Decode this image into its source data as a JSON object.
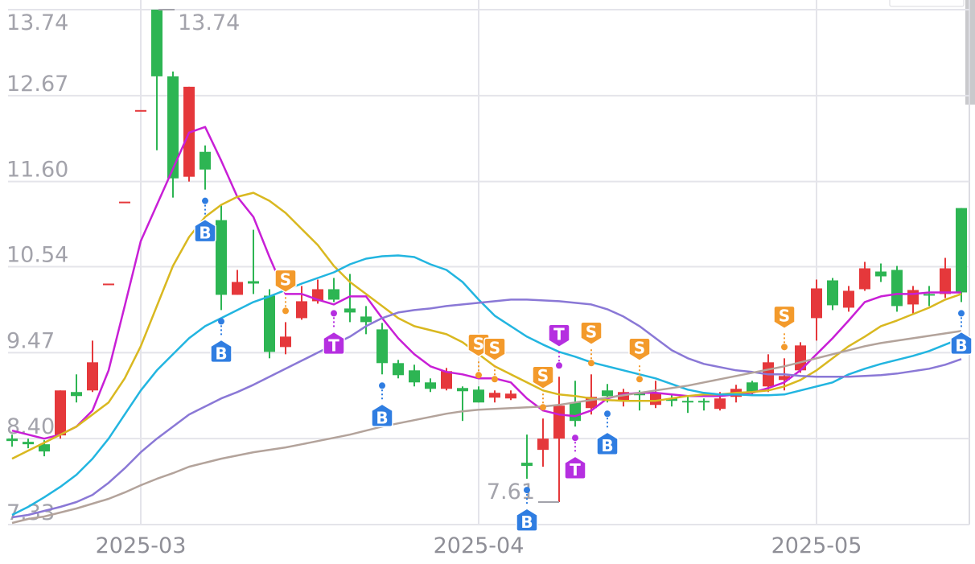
{
  "chart_data": {
    "type": "candlestick",
    "categories": [
      null,
      null,
      null,
      null,
      null,
      null,
      null,
      null,
      "2025-03",
      null,
      null,
      null,
      null,
      null,
      null,
      null,
      null,
      null,
      null,
      null,
      null,
      null,
      null,
      null,
      null,
      null,
      null,
      null,
      null,
      "2025-04",
      null,
      null,
      null,
      null,
      null,
      null,
      null,
      null,
      null,
      null,
      null,
      null,
      null,
      null,
      null,
      null,
      null,
      null,
      null,
      null,
      "2025-05",
      null,
      null,
      null,
      null,
      null,
      null,
      null,
      null,
      null
    ],
    "open": [
      8.4,
      8.36,
      8.33,
      8.44,
      8.98,
      9.0,
      10.32,
      11.34,
      12.48,
      13.74,
      12.91,
      11.66,
      11.97,
      11.12,
      10.19,
      10.36,
      10.18,
      9.54,
      9.9,
      10.11,
      10.26,
      10.02,
      9.92,
      9.76,
      9.34,
      9.25,
      9.1,
      9.02,
      9.03,
      9.01,
      8.91,
      8.9,
      8.1,
      8.26,
      8.4,
      8.85,
      8.78,
      9.0,
      8.88,
      8.95,
      8.82,
      8.9,
      8.86,
      8.86,
      8.77,
      8.92,
      9.1,
      9.05,
      9.13,
      9.25,
      9.9,
      10.37,
      10.03,
      10.26,
      10.48,
      10.5,
      10.07,
      10.19,
      10.2,
      11.27
    ],
    "high": [
      8.45,
      8.4,
      8.38,
      9.0,
      9.2,
      9.62,
      10.32,
      11.34,
      12.48,
      13.74,
      12.97,
      12.78,
      12.05,
      11.3,
      10.5,
      11.0,
      10.26,
      9.85,
      10.3,
      10.38,
      10.4,
      10.45,
      10.05,
      9.84,
      9.38,
      9.32,
      9.15,
      9.28,
      9.05,
      9.05,
      9.0,
      9.0,
      8.45,
      8.65,
      9.17,
      9.12,
      9.2,
      9.08,
      9.02,
      9.0,
      9.12,
      8.95,
      8.92,
      8.9,
      8.98,
      9.07,
      9.12,
      9.45,
      9.4,
      9.6,
      10.38,
      10.4,
      10.3,
      10.6,
      10.58,
      10.55,
      10.3,
      10.3,
      10.65,
      11.27
    ],
    "low": [
      8.3,
      8.28,
      8.18,
      8.4,
      8.85,
      8.98,
      10.32,
      11.34,
      12.48,
      11.99,
      11.4,
      11.6,
      11.5,
      10.0,
      10.19,
      10.2,
      9.4,
      9.45,
      9.88,
      10.08,
      10.1,
      9.85,
      9.7,
      9.2,
      9.15,
      9.05,
      8.98,
      9.0,
      8.62,
      8.85,
      8.85,
      8.88,
      7.9,
      8.05,
      7.61,
      8.55,
      8.7,
      8.85,
      8.8,
      8.75,
      8.78,
      8.8,
      8.72,
      8.75,
      8.75,
      8.85,
      8.95,
      8.98,
      9.0,
      9.22,
      9.62,
      10.0,
      9.98,
      10.24,
      10.35,
      9.98,
      9.95,
      10.05,
      10.15,
      10.1
    ],
    "close": [
      8.37,
      8.33,
      8.24,
      9.0,
      8.93,
      9.35,
      10.32,
      11.34,
      12.48,
      12.91,
      11.64,
      12.78,
      11.75,
      10.19,
      10.35,
      10.33,
      9.48,
      9.67,
      10.11,
      10.26,
      10.13,
      9.97,
      9.85,
      9.34,
      9.19,
      9.1,
      9.02,
      9.24,
      8.99,
      8.85,
      8.97,
      8.96,
      8.06,
      8.4,
      8.81,
      8.62,
      8.92,
      8.93,
      8.98,
      8.93,
      8.97,
      8.87,
      8.84,
      8.84,
      8.9,
      9.02,
      8.98,
      9.35,
      9.18,
      9.56,
      10.27,
      10.06,
      10.24,
      10.52,
      10.42,
      10.05,
      10.25,
      10.17,
      10.52,
      10.22
    ],
    "up_color": "#e5383b",
    "down_color": "#2db553",
    "lines": [
      {
        "color": "#c81fd6",
        "values": [
          8.5,
          8.45,
          8.4,
          8.45,
          8.55,
          8.75,
          9.25,
          10.05,
          10.86,
          11.31,
          11.76,
          12.21,
          12.28,
          11.86,
          11.41,
          11.16,
          10.66,
          10.2,
          10.2,
          10.13,
          10.07,
          10.17,
          10.17,
          9.9,
          9.65,
          9.45,
          9.3,
          9.23,
          9.2,
          9.15,
          9.15,
          9.1,
          8.9,
          8.75,
          8.7,
          8.68,
          8.75,
          8.9,
          8.95,
          8.97,
          8.97,
          8.95,
          8.93,
          8.93,
          8.93,
          8.95,
          8.97,
          9.03,
          9.1,
          9.25,
          9.45,
          9.65,
          9.87,
          10.1,
          10.17,
          10.2,
          10.2,
          10.22,
          10.22,
          10.22
        ]
      },
      {
        "color": "#d9b820",
        "values": [
          8.15,
          8.25,
          8.35,
          8.45,
          8.55,
          8.7,
          8.85,
          9.15,
          9.55,
          10.05,
          10.55,
          10.91,
          11.16,
          11.31,
          11.41,
          11.46,
          11.36,
          11.21,
          11.01,
          10.81,
          10.55,
          10.35,
          10.2,
          10.05,
          9.9,
          9.8,
          9.75,
          9.7,
          9.6,
          9.45,
          9.3,
          9.2,
          9.1,
          9.0,
          8.95,
          8.93,
          8.9,
          8.88,
          8.87,
          8.87,
          8.87,
          8.9,
          8.93,
          8.95,
          8.95,
          8.97,
          8.98,
          9.0,
          9.05,
          9.13,
          9.25,
          9.4,
          9.55,
          9.67,
          9.8,
          9.87,
          9.95,
          10.03,
          10.13,
          10.2
        ]
      },
      {
        "color": "#22b5e0",
        "values": [
          7.45,
          7.55,
          7.67,
          7.8,
          7.95,
          8.15,
          8.4,
          8.7,
          9.0,
          9.25,
          9.45,
          9.65,
          9.8,
          9.9,
          10.0,
          10.1,
          10.17,
          10.25,
          10.33,
          10.4,
          10.47,
          10.57,
          10.64,
          10.67,
          10.68,
          10.66,
          10.57,
          10.5,
          10.35,
          10.13,
          9.93,
          9.8,
          9.67,
          9.57,
          9.48,
          9.42,
          9.35,
          9.3,
          9.25,
          9.2,
          9.15,
          9.08,
          9.01,
          8.97,
          8.95,
          8.95,
          8.94,
          8.94,
          8.95,
          9.0,
          9.05,
          9.1,
          9.2,
          9.27,
          9.33,
          9.38,
          9.43,
          9.49,
          9.57,
          9.65
        ]
      },
      {
        "color": "#8a78d6",
        "values": [
          7.42,
          7.45,
          7.5,
          7.55,
          7.61,
          7.7,
          7.85,
          8.03,
          8.23,
          8.4,
          8.55,
          8.7,
          8.8,
          8.9,
          8.98,
          9.07,
          9.17,
          9.27,
          9.37,
          9.47,
          9.57,
          9.67,
          9.8,
          9.9,
          9.97,
          10.0,
          10.02,
          10.05,
          10.07,
          10.09,
          10.11,
          10.13,
          10.13,
          10.12,
          10.11,
          10.09,
          10.07,
          10.01,
          9.92,
          9.8,
          9.65,
          9.5,
          9.4,
          9.33,
          9.29,
          9.25,
          9.23,
          9.2,
          9.2,
          9.18,
          9.17,
          9.17,
          9.17,
          9.18,
          9.19,
          9.21,
          9.24,
          9.27,
          9.32,
          9.39
        ]
      },
      {
        "color": "#b3a39b",
        "values": [
          7.35,
          7.4,
          7.43,
          7.48,
          7.53,
          7.59,
          7.65,
          7.73,
          7.82,
          7.9,
          7.97,
          8.05,
          8.1,
          8.15,
          8.19,
          8.23,
          8.26,
          8.29,
          8.33,
          8.37,
          8.41,
          8.45,
          8.5,
          8.55,
          8.59,
          8.63,
          8.67,
          8.71,
          8.74,
          8.76,
          8.77,
          8.78,
          8.79,
          8.8,
          8.82,
          8.85,
          8.88,
          8.91,
          8.94,
          8.97,
          9.0,
          9.03,
          9.06,
          9.1,
          9.14,
          9.18,
          9.22,
          9.26,
          9.3,
          9.35,
          9.4,
          9.45,
          9.5,
          9.55,
          9.59,
          9.62,
          9.65,
          9.68,
          9.71,
          9.74
        ]
      }
    ],
    "signals": [
      {
        "index": 12,
        "label": "B",
        "side": "below",
        "color": "#2f7de1"
      },
      {
        "index": 13,
        "label": "B",
        "side": "below",
        "color": "#2f7de1"
      },
      {
        "index": 17,
        "label": "S",
        "side": "above",
        "color": "#f39a2b"
      },
      {
        "index": 20,
        "label": "T",
        "side": "below",
        "color": "#b52fe0"
      },
      {
        "index": 23,
        "label": "B",
        "side": "below",
        "color": "#2f7de1"
      },
      {
        "index": 29,
        "label": "S",
        "side": "above",
        "color": "#f39a2b"
      },
      {
        "index": 30,
        "label": "S",
        "side": "above",
        "color": "#f39a2b"
      },
      {
        "index": 32,
        "label": "B",
        "side": "below",
        "color": "#2f7de1"
      },
      {
        "index": 33,
        "label": "S",
        "side": "above",
        "color": "#f39a2b"
      },
      {
        "index": 34,
        "label": "T",
        "side": "above",
        "color": "#b52fe0"
      },
      {
        "index": 35,
        "label": "T",
        "side": "below",
        "color": "#b52fe0"
      },
      {
        "index": 36,
        "label": "S",
        "side": "above",
        "color": "#f39a2b"
      },
      {
        "index": 37,
        "label": "B",
        "side": "below",
        "color": "#2f7de1"
      },
      {
        "index": 39,
        "label": "S",
        "side": "above",
        "color": "#f39a2b"
      },
      {
        "index": 48,
        "label": "S",
        "side": "above",
        "color": "#f39a2b"
      },
      {
        "index": 59,
        "label": "B",
        "side": "below",
        "color": "#2f7de1"
      }
    ],
    "high_label": 13.74,
    "low_label": 7.61,
    "ylim": [
      7.33,
      13.74
    ],
    "yticks": [
      13.74,
      12.67,
      {
        "value": 11.6,
        "label": "11.60"
      },
      10.54,
      9.47,
      {
        "value": 8.4,
        "label": "8.40"
      },
      7.33
    ],
    "grid": true
  }
}
